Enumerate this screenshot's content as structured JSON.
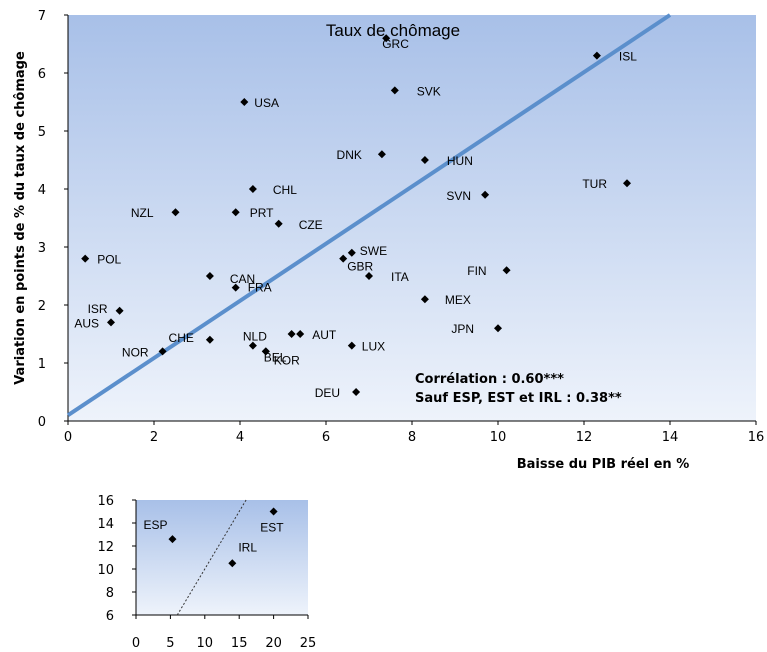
{
  "colors": {
    "plot_bg_top": "#a8c0e8",
    "plot_bg_bottom": "#eef3fb",
    "fit_line": "#5b8fcc",
    "marker": "#000000"
  },
  "chart_data": [
    {
      "type": "scatter",
      "title": "Taux de chômage",
      "xlabel": "Baisse du PIB réel en %",
      "ylabel": "Variation en points de % du taux de chômage",
      "xlim": [
        0,
        16
      ],
      "ylim": [
        0,
        7
      ],
      "xticks": [
        "0",
        "2",
        "4",
        "6",
        "8",
        "10",
        "12",
        "14",
        "16"
      ],
      "yticks": [
        "0",
        "1",
        "2",
        "3",
        "4",
        "5",
        "6",
        "7"
      ],
      "grid": false,
      "fit_line": {
        "x": [
          0,
          14
        ],
        "y": [
          0.1,
          7.0
        ]
      },
      "annotations": [
        "Corrélation : 0.60***",
        "Sauf ESP, EST et IRL : 0.38**"
      ],
      "points": [
        {
          "label": "GRC",
          "x": 7.4,
          "y": 6.6
        },
        {
          "label": "ISL",
          "x": 12.3,
          "y": 6.3
        },
        {
          "label": "SVK",
          "x": 7.6,
          "y": 5.7
        },
        {
          "label": "USA",
          "x": 4.1,
          "y": 5.5
        },
        {
          "label": "DNK",
          "x": 7.3,
          "y": 4.6
        },
        {
          "label": "HUN",
          "x": 8.3,
          "y": 4.5
        },
        {
          "label": "TUR",
          "x": 13.0,
          "y": 4.1
        },
        {
          "label": "CHL",
          "x": 4.3,
          "y": 4.0
        },
        {
          "label": "SVN",
          "x": 9.7,
          "y": 3.9
        },
        {
          "label": "NZL",
          "x": 2.5,
          "y": 3.6
        },
        {
          "label": "PRT",
          "x": 3.9,
          "y": 3.6
        },
        {
          "label": "CZE",
          "x": 4.9,
          "y": 3.4
        },
        {
          "label": "SWE",
          "x": 6.6,
          "y": 2.9
        },
        {
          "label": "GBR",
          "x": 6.4,
          "y": 2.8
        },
        {
          "label": "POL",
          "x": 0.4,
          "y": 2.8
        },
        {
          "label": "FIN",
          "x": 10.2,
          "y": 2.6
        },
        {
          "label": "ITA",
          "x": 7.0,
          "y": 2.5
        },
        {
          "label": "CAN",
          "x": 3.3,
          "y": 2.5
        },
        {
          "label": "FRA",
          "x": 3.9,
          "y": 2.3
        },
        {
          "label": "MEX",
          "x": 8.3,
          "y": 2.1
        },
        {
          "label": "ISR",
          "x": 1.2,
          "y": 1.9
        },
        {
          "label": "AUS",
          "x": 1.0,
          "y": 1.7
        },
        {
          "label": "JPN",
          "x": 10.0,
          "y": 1.6
        },
        {
          "label": "AUT",
          "x": 5.4,
          "y": 1.5
        },
        {
          "label": "",
          "x": 5.2,
          "y": 1.5
        },
        {
          "label": "CHE",
          "x": 3.3,
          "y": 1.4
        },
        {
          "label": "NLD",
          "x": 4.3,
          "y": 1.3
        },
        {
          "label": "LUX",
          "x": 6.6,
          "y": 1.3
        },
        {
          "label": "BEL",
          "x": 4.6,
          "y": 1.2
        },
        {
          "label": "NOR",
          "x": 2.2,
          "y": 1.2
        },
        {
          "label": "KOR",
          "x": 4.6,
          "y": 1.2
        },
        {
          "label": "DEU",
          "x": 6.7,
          "y": 0.5
        }
      ]
    },
    {
      "type": "scatter",
      "title": "",
      "xlim": [
        0,
        25
      ],
      "ylim": [
        6,
        16
      ],
      "xticks": [
        "0",
        "5",
        "10",
        "15",
        "20",
        "25"
      ],
      "yticks": [
        "6",
        "8",
        "10",
        "12",
        "14",
        "16"
      ],
      "grid": false,
      "fit_line": {
        "x": [
          6,
          16
        ],
        "y": [
          6,
          16
        ]
      },
      "points": [
        {
          "label": "ESP",
          "x": 5.3,
          "y": 12.6
        },
        {
          "label": "EST",
          "x": 20.0,
          "y": 15.0
        },
        {
          "label": "IRL",
          "x": 14.0,
          "y": 10.5
        }
      ]
    }
  ]
}
